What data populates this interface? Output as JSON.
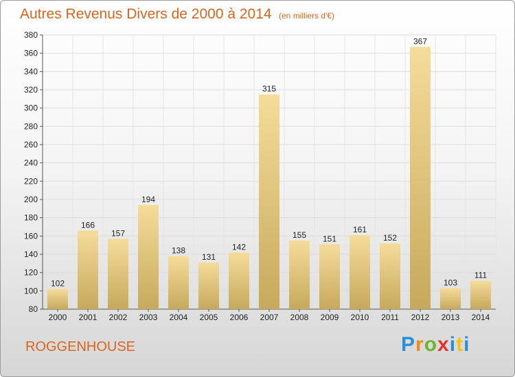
{
  "header": {
    "title": "Autres Revenus Divers de 2000 à 2014",
    "subtitle": "(en milliers d'€)"
  },
  "footer": {
    "location": "ROGGENHOUSE",
    "brand": "Proxiti"
  },
  "colors": {
    "accent": "#d9651e",
    "bar_light": "#f5dc9a",
    "bar_dark": "#c6a95c"
  },
  "chart_data": {
    "type": "bar",
    "categories": [
      "2000",
      "2001",
      "2002",
      "2003",
      "2004",
      "2005",
      "2006",
      "2007",
      "2008",
      "2009",
      "2010",
      "2011",
      "2012",
      "2013",
      "2014"
    ],
    "values": [
      102,
      166,
      157,
      194,
      138,
      131,
      142,
      315,
      155,
      151,
      161,
      152,
      367,
      103,
      111
    ],
    "title": "Autres Revenus Divers de 2000 à 2014",
    "subtitle": "(en milliers d'€)",
    "xlabel": "",
    "ylabel": "",
    "ylim": [
      80,
      380
    ],
    "yticks": [
      80,
      100,
      120,
      140,
      160,
      180,
      200,
      220,
      240,
      260,
      280,
      300,
      320,
      340,
      360,
      380
    ],
    "grid": true,
    "data_labels": true
  }
}
